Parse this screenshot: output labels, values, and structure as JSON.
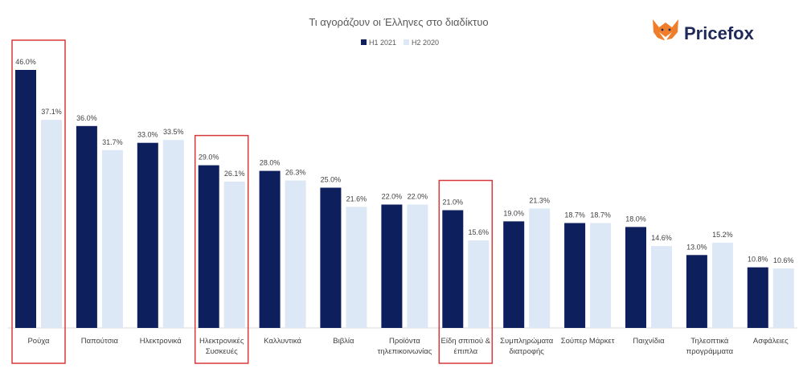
{
  "chart_data": {
    "type": "bar",
    "title": "Τι αγοράζουν οι Έλληνες στο διαδίκτυο",
    "categories": [
      "Ρούχα",
      "Παπούτσια",
      "Ηλεκτρονικά",
      "Ηλεκτρονικές Συσκευές",
      "Καλλυντικά",
      "Βιβλία",
      "Προϊόντα τηλεπικοινωνίας",
      "Είδη σπιτιού & έπιπλα",
      "Συμπληρώματα διατροφής",
      "Σούπερ Μάρκετ",
      "Παιχνίδια",
      "Τηλεοπτικά προγράμματα",
      "Ασφάλειες"
    ],
    "category_lines": [
      [
        "Ρούχα"
      ],
      [
        "Παπούτσια"
      ],
      [
        "Ηλεκτρονικά"
      ],
      [
        "Ηλεκτρονικές",
        "Συσκευές"
      ],
      [
        "Καλλυντικά"
      ],
      [
        "Βιβλία"
      ],
      [
        "Προϊόντα",
        "τηλεπικοινωνίας"
      ],
      [
        "Είδη σπιτιού &",
        "έπιπλα"
      ],
      [
        "Συμπληρώματα",
        "διατροφής"
      ],
      [
        "Σούπερ Μάρκετ"
      ],
      [
        "Παιχνίδια"
      ],
      [
        "Τηλεοπτικά",
        "προγράμματα"
      ],
      [
        "Ασφάλειες"
      ]
    ],
    "series": [
      {
        "name": "H1 2021",
        "color": "#0d1f5c",
        "values": [
          46.0,
          36.0,
          33.0,
          29.0,
          28.0,
          25.0,
          22.0,
          21.0,
          19.0,
          18.7,
          18.0,
          13.0,
          10.8
        ]
      },
      {
        "name": "H2 2020",
        "color": "#dce8f5",
        "values": [
          37.1,
          31.7,
          33.5,
          26.1,
          26.3,
          21.6,
          22.0,
          15.6,
          21.3,
          18.7,
          14.6,
          15.2,
          10.6
        ]
      }
    ],
    "ylim": [
      0,
      50
    ],
    "xlabel": "",
    "ylabel": "",
    "grid": false,
    "legend": "top-center",
    "highlighted_categories": [
      "Ρούχα",
      "Ηλεκτρονικές Συσκευές",
      "Είδη σπιτιού & έπιπλα"
    ],
    "highlight_color": "#d9383a"
  },
  "brand": {
    "name": "Pricefox",
    "logo_icon": "fox-icon",
    "text_color": "#1f2a5a",
    "icon_color": "#f07d2a"
  }
}
